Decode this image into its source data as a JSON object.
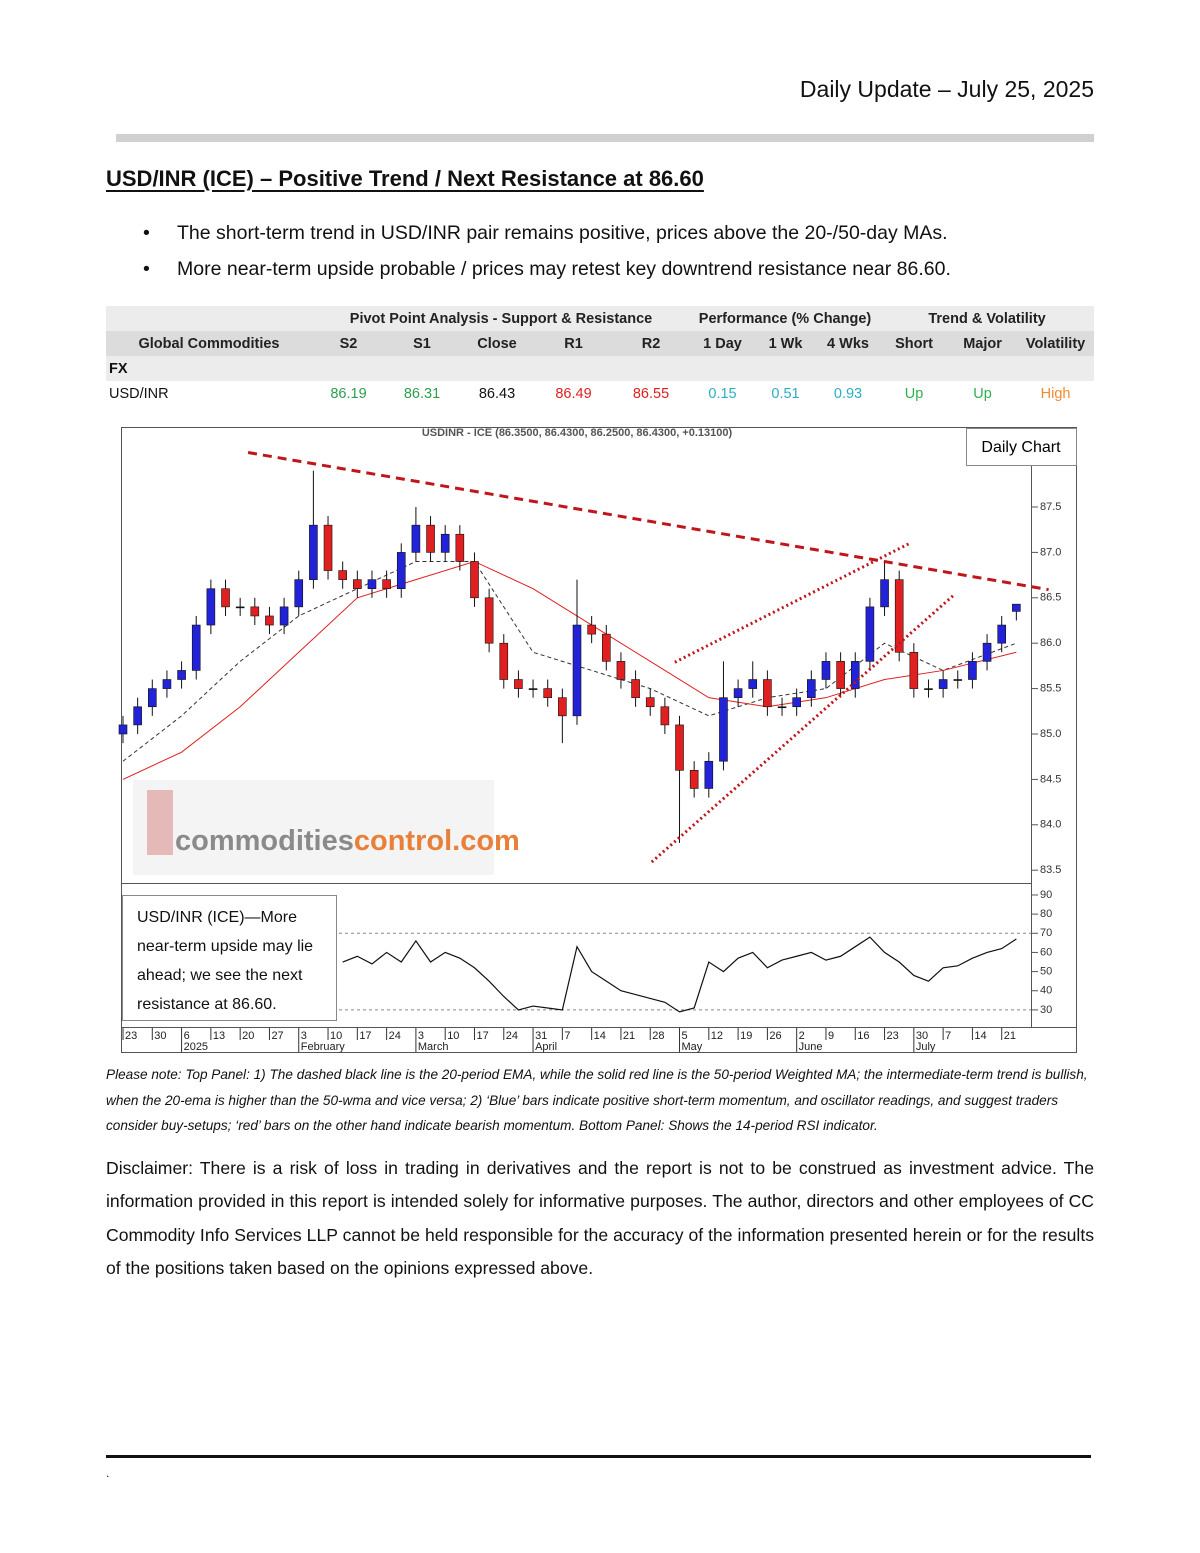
{
  "header": {
    "date": "Daily Update – July 25, 2025"
  },
  "title": "USD/INR (ICE) – Positive Trend / Next Resistance at 86.60",
  "bullets": [
    "The short-term trend in USD/INR pair remains positive, prices above the 20-/50-day MAs.",
    "More near-term upside probable / prices may retest key downtrend resistance near 86.60."
  ],
  "table": {
    "group_headers": [
      "Pivot Point Analysis - Support & Resistance",
      "Performance (% Change)",
      "Trend & Volatility"
    ],
    "columns": [
      "Global Commodities",
      "S2",
      "S1",
      "Close",
      "R1",
      "R2",
      "1 Day",
      "1 Wk",
      "4 Wks",
      "Short",
      "Major",
      "Volatility"
    ],
    "sections": [
      {
        "label": "FX",
        "rows": [
          [
            "USD/INR",
            86.19,
            86.31,
            86.43,
            86.49,
            86.55,
            0.15,
            0.51,
            0.93,
            "Up",
            "Up",
            "High"
          ]
        ]
      }
    ]
  },
  "chart_data": [
    {
      "type": "candlestick",
      "title": "USDINR - ICE (86.3500, 86.4300, 86.2500, 86.4300, +0.13100)",
      "label": "Daily Chart",
      "watermark": [
        "commodities",
        "control.com"
      ],
      "up_color": "#2222d6",
      "down_color": "#e02020",
      "x": [
        0,
        0.5,
        1,
        1.5,
        2,
        2.5,
        3,
        3.5,
        4,
        4.5,
        5,
        5.5,
        6,
        6.5,
        7,
        7.5,
        8,
        8.5,
        9,
        9.5,
        10,
        10.5,
        11,
        11.5,
        12,
        12.5,
        13,
        13.5,
        14,
        14.5,
        15,
        15.5,
        16,
        16.5,
        17,
        17.5,
        18,
        18.5,
        19,
        19.5,
        20,
        20.5,
        21,
        21.5,
        22,
        22.5,
        23,
        23.5,
        24,
        24.5,
        25,
        25.5,
        26,
        26.5,
        27,
        27.5,
        28,
        28.5,
        29,
        29.5,
        30,
        30.5
      ],
      "open": [
        85.0,
        85.1,
        85.3,
        85.5,
        85.6,
        85.7,
        86.2,
        86.6,
        86.4,
        86.4,
        86.3,
        86.2,
        86.4,
        86.7,
        87.3,
        86.8,
        86.7,
        86.6,
        86.7,
        86.6,
        87.0,
        87.3,
        87.0,
        87.2,
        86.9,
        86.5,
        86.0,
        85.6,
        85.5,
        85.5,
        85.4,
        85.2,
        86.2,
        86.1,
        85.8,
        85.6,
        85.4,
        85.3,
        85.1,
        84.6,
        84.4,
        84.7,
        85.4,
        85.5,
        85.6,
        85.3,
        85.3,
        85.4,
        85.6,
        85.8,
        85.5,
        85.8,
        86.4,
        86.7,
        85.9,
        85.5,
        85.5,
        85.6,
        85.6,
        85.8,
        86.0,
        86.35
      ],
      "high": [
        85.2,
        85.4,
        85.6,
        85.7,
        85.8,
        86.3,
        86.7,
        86.7,
        86.5,
        86.5,
        86.4,
        86.5,
        86.8,
        87.9,
        87.4,
        86.9,
        86.8,
        86.8,
        86.8,
        87.1,
        87.5,
        87.4,
        87.3,
        87.3,
        87.0,
        86.6,
        86.1,
        85.7,
        85.6,
        85.6,
        85.5,
        86.7,
        86.3,
        86.2,
        85.9,
        85.7,
        85.5,
        85.4,
        85.2,
        84.7,
        84.8,
        85.8,
        85.6,
        85.8,
        85.7,
        85.4,
        85.5,
        85.7,
        85.9,
        85.9,
        85.9,
        86.5,
        86.9,
        86.8,
        86.0,
        85.6,
        85.7,
        85.7,
        85.9,
        86.1,
        86.3,
        86.43
      ],
      "low": [
        84.9,
        85.0,
        85.2,
        85.4,
        85.5,
        85.6,
        86.1,
        86.3,
        86.3,
        86.2,
        86.1,
        86.1,
        86.3,
        86.6,
        86.7,
        86.6,
        86.5,
        86.5,
        86.5,
        86.5,
        86.9,
        86.9,
        86.9,
        86.8,
        86.4,
        85.9,
        85.5,
        85.4,
        85.4,
        85.3,
        84.9,
        85.1,
        86.0,
        85.7,
        85.5,
        85.3,
        85.2,
        85.0,
        83.8,
        84.3,
        84.3,
        84.6,
        85.3,
        85.4,
        85.2,
        85.2,
        85.2,
        85.3,
        85.5,
        85.4,
        85.4,
        85.7,
        86.3,
        85.8,
        85.4,
        85.4,
        85.4,
        85.5,
        85.5,
        85.7,
        85.9,
        86.25
      ],
      "close": [
        85.1,
        85.3,
        85.5,
        85.6,
        85.7,
        86.2,
        86.6,
        86.4,
        86.4,
        86.3,
        86.2,
        86.4,
        86.7,
        87.3,
        86.8,
        86.7,
        86.6,
        86.7,
        86.6,
        87.0,
        87.3,
        87.0,
        87.2,
        86.9,
        86.5,
        86.0,
        85.6,
        85.5,
        85.5,
        85.4,
        85.2,
        86.2,
        86.1,
        85.8,
        85.6,
        85.4,
        85.3,
        85.1,
        84.6,
        84.4,
        84.7,
        85.4,
        85.5,
        85.6,
        85.3,
        85.3,
        85.4,
        85.6,
        85.8,
        85.5,
        85.8,
        86.4,
        86.7,
        85.9,
        85.5,
        85.5,
        85.6,
        85.6,
        85.8,
        86.0,
        86.2,
        86.43
      ],
      "lines": [
        {
          "color": "#333333",
          "style": "dashed",
          "x": [
            0,
            2,
            4,
            6,
            8,
            10,
            12,
            14,
            16,
            18,
            20,
            22,
            24,
            26,
            28,
            30.5
          ],
          "values": [
            84.7,
            85.2,
            85.8,
            86.3,
            86.6,
            86.9,
            86.9,
            85.9,
            85.7,
            85.5,
            85.2,
            85.4,
            85.5,
            86.0,
            85.7,
            86.0
          ]
        },
        {
          "color": "#e02020",
          "style": "solid",
          "x": [
            0,
            2,
            4,
            6,
            8,
            10,
            12,
            14,
            16,
            18,
            20,
            22,
            24,
            26,
            28,
            30.5
          ],
          "values": [
            84.5,
            84.8,
            85.3,
            85.9,
            86.5,
            86.7,
            86.9,
            86.6,
            86.2,
            85.8,
            85.4,
            85.3,
            85.4,
            85.6,
            85.7,
            85.9
          ]
        }
      ],
      "trendlines": [
        {
          "color": "#c0161b",
          "style": "dashed",
          "x": [
            4.27,
            31.6
          ],
          "values": [
            88.1,
            86.59
          ]
        },
        {
          "color": "#c0161b",
          "style": "dotted",
          "x": [
            18.84,
            26.86
          ],
          "values": [
            85.79,
            87.1
          ]
        },
        {
          "color": "#c0161b",
          "style": "dotted",
          "x": [
            18.05,
            28.4
          ],
          "values": [
            83.59,
            86.54
          ]
        }
      ],
      "xlim": [
        0,
        31
      ],
      "ylim": [
        83.37,
        88.37
      ],
      "yticks": [
        {
          "value": 83.5,
          "label": "83.5"
        },
        {
          "value": 84,
          "label": "84.0"
        },
        {
          "value": 84.5,
          "label": "84.5"
        },
        {
          "value": 85,
          "label": "85.0"
        },
        {
          "value": 85.5,
          "label": "85.5"
        },
        {
          "value": 86,
          "label": "86.0"
        },
        {
          "value": 86.5,
          "label": "86.5"
        },
        {
          "value": 87,
          "label": "87.0"
        },
        {
          "value": 87.5,
          "label": "87.5"
        }
      ]
    },
    {
      "type": "line",
      "color": "#111111",
      "annotation": "USD/INR (ICE)—More near-term upside may lie ahead; we see the next resistance at 86.60.",
      "x": [
        7.5,
        8,
        8.5,
        9,
        9.5,
        10,
        10.5,
        11,
        11.5,
        12,
        12.5,
        13,
        13.5,
        14,
        14.5,
        15,
        15.5,
        16,
        16.5,
        17,
        17.5,
        18,
        18.5,
        19,
        19.5,
        20,
        20.5,
        21,
        21.5,
        22,
        22.5,
        23,
        23.5,
        24,
        24.5,
        25,
        25.5,
        26,
        26.5,
        27,
        27.5,
        28,
        28.5,
        29,
        29.5,
        30,
        30.5
      ],
      "values": [
        55,
        58,
        54,
        60,
        55,
        66,
        55,
        60,
        57,
        52,
        45,
        37,
        30,
        32,
        31,
        30,
        63,
        50,
        45,
        40,
        38,
        36,
        34,
        29,
        31,
        55,
        50,
        57,
        60,
        52,
        56,
        58,
        60,
        56,
        58,
        63,
        68,
        60,
        55,
        48,
        45,
        52,
        53,
        57,
        60,
        62,
        67
      ],
      "hlines": [
        70,
        30
      ],
      "xlim": [
        0,
        31
      ],
      "ylim": [
        21.6,
        95.2
      ],
      "yticks": [
        30,
        40,
        50,
        60,
        70,
        80,
        90
      ],
      "xticks": [
        {
          "value": 0,
          "label": "23"
        },
        {
          "value": 1,
          "label": "30"
        },
        {
          "value": 2,
          "label": "6"
        },
        {
          "value": 3,
          "label": "13"
        },
        {
          "value": 4,
          "label": "20"
        },
        {
          "value": 5,
          "label": "27"
        },
        {
          "value": 6,
          "label": "3"
        },
        {
          "value": 7,
          "label": "10"
        },
        {
          "value": 8,
          "label": "17"
        },
        {
          "value": 9,
          "label": "24"
        },
        {
          "value": 10,
          "label": "3"
        },
        {
          "value": 11,
          "label": "10"
        },
        {
          "value": 12,
          "label": "17"
        },
        {
          "value": 13,
          "label": "24"
        },
        {
          "value": 14,
          "label": "31"
        },
        {
          "value": 15,
          "label": "7"
        },
        {
          "value": 16,
          "label": "14"
        },
        {
          "value": 17,
          "label": "21"
        },
        {
          "value": 18,
          "label": "28"
        },
        {
          "value": 19,
          "label": "5"
        },
        {
          "value": 20,
          "label": "12"
        },
        {
          "value": 21,
          "label": "19"
        },
        {
          "value": 22,
          "label": "26"
        },
        {
          "value": 23,
          "label": "2"
        },
        {
          "value": 24,
          "label": "9"
        },
        {
          "value": 25,
          "label": "16"
        },
        {
          "value": 26,
          "label": "23"
        },
        {
          "value": 27,
          "label": "30"
        },
        {
          "value": 28,
          "label": "7"
        },
        {
          "value": 29,
          "label": "14"
        },
        {
          "value": 30,
          "label": "21"
        }
      ],
      "xsublabels": [
        {
          "value": 2,
          "label": "2025"
        },
        {
          "value": 6,
          "label": "February"
        },
        {
          "value": 10,
          "label": "March"
        },
        {
          "value": 14,
          "label": "April"
        },
        {
          "value": 19,
          "label": "May"
        },
        {
          "value": 23,
          "label": "June"
        },
        {
          "value": 27,
          "label": "July"
        }
      ]
    }
  ],
  "note": "Please note: Top Panel: 1) The dashed black line is the 20-period EMA, while the solid red line is the 50-period Weighted MA; the intermediate-term trend is bullish, when the 20-ema is higher than the 50-wma and vice versa; 2)  ‘Blue’  bars indicate positive short-term momentum, and oscillator readings, and suggest traders consider buy-setups;  ‘red’  bars on the other hand indicate bearish momentum. Bottom Panel: Shows the 14-period RSI indicator.",
  "disclaimer": "Disclaimer: There is a risk of loss in trading in derivatives and the report is not to be construed as investment advice. The information provided in this report is intended solely for informative purposes. The author, directors and other employees of CC Commodity Info Services LLP cannot be held responsible for the accuracy of the information presented herein or for the results of the positions taken based on the opinions expressed above.",
  "footer": "."
}
